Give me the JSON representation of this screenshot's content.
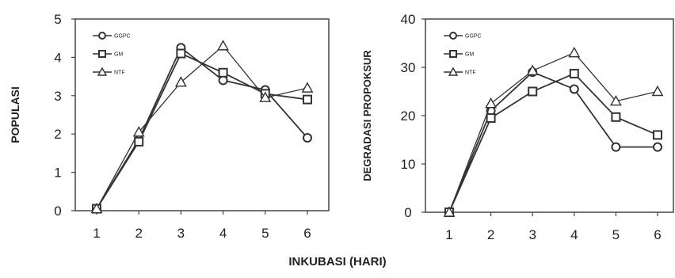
{
  "shared_xlabel": "INKUBASI  (HARI)",
  "colors": {
    "line": "#333333",
    "frame": "#444444",
    "marker_fill": "#ffffff",
    "text": "#222222"
  },
  "chart_data": [
    {
      "type": "line",
      "title": "",
      "xlabel": "",
      "ylabel": "POPULASI",
      "categories": [
        "1",
        "2",
        "3",
        "4",
        "5",
        "6"
      ],
      "ylim": [
        0,
        5
      ],
      "yticks": [
        "0",
        "1",
        "2",
        "3",
        "4",
        "5"
      ],
      "grid": false,
      "legend": "top-left",
      "series": [
        {
          "name": "GGPC",
          "marker": "circle",
          "values": [
            0.05,
            1.85,
            4.25,
            3.4,
            3.15,
            1.9
          ]
        },
        {
          "name": "GM",
          "marker": "square",
          "values": [
            0.05,
            1.8,
            4.1,
            3.6,
            3.05,
            2.9
          ]
        },
        {
          "name": "NTF",
          "marker": "triangle",
          "values": [
            0.05,
            2.05,
            3.35,
            4.3,
            2.95,
            3.2
          ]
        }
      ]
    },
    {
      "type": "line",
      "title": "",
      "xlabel": "",
      "ylabel": "DEGRADASI PROPOKSUR",
      "categories": [
        "1",
        "2",
        "3",
        "4",
        "5",
        "6"
      ],
      "ylim": [
        0,
        40
      ],
      "yticks": [
        "0",
        "10",
        "20",
        "30",
        "40"
      ],
      "grid": false,
      "legend": "top-left",
      "series": [
        {
          "name": "GGPC",
          "marker": "circle",
          "values": [
            0,
            21,
            29,
            25.5,
            13.5,
            13.5
          ]
        },
        {
          "name": "GM",
          "marker": "square",
          "values": [
            0,
            19.5,
            25,
            28.7,
            19.7,
            16
          ]
        },
        {
          "name": "NTF",
          "marker": "triangle",
          "values": [
            0,
            22.5,
            29.3,
            33,
            23,
            25
          ]
        }
      ]
    }
  ]
}
